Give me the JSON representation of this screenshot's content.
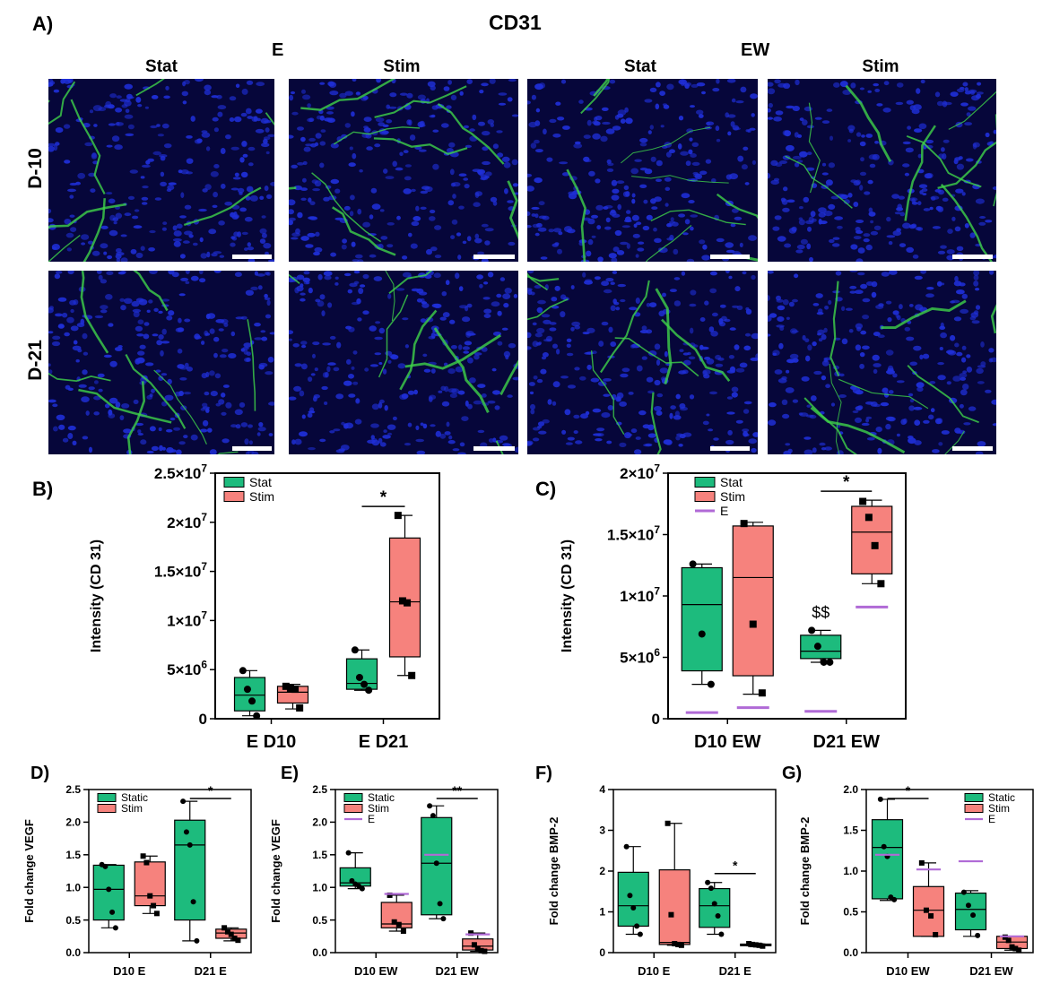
{
  "panel_a": {
    "letter": "A)",
    "title": "CD31",
    "group_labels": [
      "E",
      "EW"
    ],
    "column_labels": [
      "Stat",
      "Stim",
      "Stat",
      "Stim"
    ],
    "row_labels": [
      "D-10",
      "D-21"
    ],
    "colors": {
      "nuclei": "#1f2fd8",
      "cd31": "#3fd24a",
      "background": "#06063a"
    }
  },
  "chart_data": [
    {
      "id": "B",
      "letter": "B)",
      "type": "box",
      "ylabel": "Intensity (CD 31)",
      "yscale_label_style": "scientific",
      "ylim": [
        0,
        25000000
      ],
      "yticks": [
        0,
        5000000,
        10000000,
        15000000,
        20000000,
        25000000
      ],
      "ytick_labels": [
        "0",
        "5×10^6",
        "1×10^7",
        "1.5×10^7",
        "2×10^7",
        "2.5×10^7"
      ],
      "categories": [
        "E D10",
        "E D21"
      ],
      "legend": [
        {
          "name": "Stat",
          "color": "#1dbb7d"
        },
        {
          "name": "Stim",
          "color": "#f6827d"
        }
      ],
      "series": [
        {
          "name": "Stat",
          "color": "#1dbb7d",
          "marker": "circle",
          "boxes": [
            {
              "min": 300000,
              "q1": 800000,
              "median": 2400000,
              "q3": 4200000,
              "max": 4900000,
              "points": [
                4900000,
                3000000,
                1800000,
                300000
              ]
            },
            {
              "min": 2900000,
              "q1": 3000000,
              "median": 3600000,
              "q3": 6100000,
              "max": 7000000,
              "points": [
                7000000,
                4200000,
                3500000,
                2900000
              ]
            }
          ]
        },
        {
          "name": "Stim",
          "color": "#f6827d",
          "marker": "square",
          "boxes": [
            {
              "min": 1000000,
              "q1": 1600000,
              "median": 2700000,
              "q3": 3300000,
              "max": 3500000,
              "points": [
                3300000,
                3100000,
                3000000,
                1100000
              ]
            },
            {
              "min": 4400000,
              "q1": 6300000,
              "median": 11900000,
              "q3": 18400000,
              "max": 20700000,
              "points": [
                20700000,
                12000000,
                11800000,
                4400000
              ]
            }
          ]
        }
      ],
      "significance": [
        {
          "category": 1,
          "label": "*"
        }
      ],
      "reference_lines": []
    },
    {
      "id": "C",
      "letter": "C)",
      "type": "box",
      "ylabel": "Intensity (CD 31)",
      "ylim": [
        0,
        20000000
      ],
      "yticks": [
        0,
        5000000,
        10000000,
        15000000,
        20000000
      ],
      "ytick_labels": [
        "0",
        "5×10^6",
        "1×10^7",
        "1.5×10^7",
        "2×10^7"
      ],
      "categories": [
        "D10 EW",
        "D21 EW"
      ],
      "legend": [
        {
          "name": "Stat",
          "color": "#1dbb7d"
        },
        {
          "name": "Stim",
          "color": "#f6827d"
        },
        {
          "name": "E",
          "color": "#b06ad6"
        }
      ],
      "series": [
        {
          "name": "Stat",
          "color": "#1dbb7d",
          "marker": "circle",
          "boxes": [
            {
              "min": 2800000,
              "q1": 3900000,
              "median": 9300000,
              "q3": 12300000,
              "max": 12600000,
              "points": [
                12600000,
                6900000,
                2800000
              ]
            },
            {
              "min": 4600000,
              "q1": 4900000,
              "median": 5500000,
              "q3": 6800000,
              "max": 7200000,
              "points": [
                7200000,
                5900000,
                4600000,
                4600000
              ]
            }
          ]
        },
        {
          "name": "Stim",
          "color": "#f6827d",
          "marker": "square",
          "boxes": [
            {
              "min": 2000000,
              "q1": 3500000,
              "median": 11500000,
              "q3": 15700000,
              "max": 16000000,
              "points": [
                15900000,
                7700000,
                2100000
              ]
            },
            {
              "min": 11000000,
              "q1": 11800000,
              "median": 15200000,
              "q3": 17300000,
              "max": 17800000,
              "points": [
                17700000,
                16400000,
                14100000,
                11000000
              ]
            }
          ]
        }
      ],
      "reference_lines": [
        {
          "category": 0,
          "offset": "Stat",
          "value": 500000
        },
        {
          "category": 0,
          "offset": "Stim",
          "value": 900000
        },
        {
          "category": 1,
          "offset": "Stat",
          "value": 600000
        },
        {
          "category": 1,
          "offset": "Stim",
          "value": 9100000
        }
      ],
      "significance": [
        {
          "category": 1,
          "label": "*"
        }
      ],
      "annotations": [
        {
          "category": 1,
          "series": "Stat",
          "text": "$$"
        }
      ]
    },
    {
      "id": "D",
      "letter": "D)",
      "type": "box",
      "ylabel": "Fold change VEGF",
      "ylim": [
        0,
        2.5
      ],
      "yticks": [
        0,
        0.5,
        1,
        1.5,
        2,
        2.5
      ],
      "ytick_labels": [
        "0.0",
        "0.5",
        "1.0",
        "1.5",
        "2.0",
        "2.5"
      ],
      "categories": [
        "D10 E",
        "D21 E"
      ],
      "legend": [
        {
          "name": "Static",
          "color": "#1dbb7d"
        },
        {
          "name": "Stim",
          "color": "#f6827d"
        }
      ],
      "series": [
        {
          "name": "Static",
          "color": "#1dbb7d",
          "marker": "circle",
          "boxes": [
            {
              "min": 0.38,
              "q1": 0.5,
              "median": 0.97,
              "q3": 1.34,
              "max": 1.35,
              "points": [
                1.35,
                1.32,
                0.97,
                0.62,
                0.38
              ]
            },
            {
              "min": 0.18,
              "q1": 0.5,
              "median": 1.65,
              "q3": 2.03,
              "max": 2.32,
              "points": [
                2.32,
                1.85,
                1.65,
                0.78,
                0.18
              ]
            }
          ]
        },
        {
          "name": "Stim",
          "color": "#f6827d",
          "marker": "square",
          "boxes": [
            {
              "min": 0.6,
              "q1": 0.72,
              "median": 0.87,
              "q3": 1.39,
              "max": 1.48,
              "points": [
                1.48,
                1.38,
                0.87,
                0.72,
                0.6
              ]
            },
            {
              "min": 0.18,
              "q1": 0.22,
              "median": 0.3,
              "q3": 0.36,
              "max": 0.38,
              "points": [
                0.38,
                0.32,
                0.28,
                0.22,
                0.19
              ]
            }
          ]
        }
      ],
      "significance": [
        {
          "category": 1,
          "label": "*"
        }
      ],
      "reference_lines": []
    },
    {
      "id": "E",
      "letter": "E)",
      "type": "box",
      "ylabel": "Fold change VEGF",
      "ylim": [
        0,
        2.5
      ],
      "yticks": [
        0,
        0.5,
        1,
        1.5,
        2,
        2.5
      ],
      "ytick_labels": [
        "0.0",
        "0.5",
        "1.0",
        "1.5",
        "2.0",
        "2.5"
      ],
      "categories": [
        "D10 EW",
        "D21 EW"
      ],
      "legend": [
        {
          "name": "Static",
          "color": "#1dbb7d"
        },
        {
          "name": "Stim",
          "color": "#f6827d"
        },
        {
          "name": "E",
          "color": "#b06ad6"
        }
      ],
      "series": [
        {
          "name": "Static",
          "color": "#1dbb7d",
          "marker": "circle",
          "boxes": [
            {
              "min": 0.98,
              "q1": 1.02,
              "median": 1.07,
              "q3": 1.3,
              "max": 1.53,
              "points": [
                1.53,
                1.1,
                1.05,
                1.02,
                0.98
              ]
            },
            {
              "min": 0.52,
              "q1": 0.58,
              "median": 1.37,
              "q3": 2.07,
              "max": 2.25,
              "points": [
                2.25,
                2.1,
                1.37,
                0.75,
                0.52
              ]
            }
          ]
        },
        {
          "name": "Stim",
          "color": "#f6827d",
          "marker": "square",
          "boxes": [
            {
              "min": 0.33,
              "q1": 0.38,
              "median": 0.44,
              "q3": 0.77,
              "max": 0.88,
              "points": [
                0.88,
                0.47,
                0.43,
                0.33
              ]
            },
            {
              "min": 0.02,
              "q1": 0.04,
              "median": 0.1,
              "q3": 0.21,
              "max": 0.3,
              "points": [
                0.3,
                0.12,
                0.06,
                0.03,
                0.02
              ]
            }
          ]
        }
      ],
      "reference_lines": [
        {
          "category": 0,
          "offset": "Stim",
          "value": 0.9
        },
        {
          "category": 1,
          "offset": "Static",
          "value": 1.5
        },
        {
          "category": 1,
          "offset": "Stim",
          "value": 0.28
        }
      ],
      "significance": [
        {
          "category": 1,
          "label": "**"
        }
      ]
    },
    {
      "id": "F",
      "letter": "F)",
      "type": "box",
      "ylabel": "Fold change BMP-2",
      "ylim": [
        0,
        4
      ],
      "yticks": [
        0,
        1,
        2,
        3,
        4
      ],
      "ytick_labels": [
        "0",
        "1",
        "2",
        "3",
        "4"
      ],
      "categories": [
        "D10 E",
        "D21 E"
      ],
      "legend": [],
      "series": [
        {
          "name": "Static",
          "color": "#1dbb7d",
          "marker": "circle",
          "boxes": [
            {
              "min": 0.45,
              "q1": 0.65,
              "median": 1.15,
              "q3": 1.97,
              "max": 2.6,
              "points": [
                2.6,
                1.4,
                1.1,
                0.65,
                0.45
              ]
            },
            {
              "min": 0.45,
              "q1": 0.62,
              "median": 1.15,
              "q3": 1.57,
              "max": 1.72,
              "points": [
                1.72,
                1.58,
                1.2,
                0.9,
                0.45
              ]
            }
          ]
        },
        {
          "name": "Stim",
          "color": "#f6827d",
          "marker": "square",
          "boxes": [
            {
              "min": 0.18,
              "q1": 0.2,
              "median": 0.25,
              "q3": 2.03,
              "max": 3.17,
              "points": [
                3.17,
                0.93,
                0.22,
                0.2,
                0.18
              ]
            },
            {
              "min": 0.15,
              "q1": 0.17,
              "median": 0.19,
              "q3": 0.21,
              "max": 0.22,
              "points": [
                0.22,
                0.2,
                0.19,
                0.18,
                0.16
              ]
            }
          ]
        }
      ],
      "significance": [
        {
          "category": 1,
          "label": "*"
        }
      ],
      "reference_lines": []
    },
    {
      "id": "G",
      "letter": "G)",
      "type": "box",
      "ylabel": "Fold change BMP-2",
      "ylim": [
        0,
        2
      ],
      "yticks": [
        0,
        0.5,
        1,
        1.5,
        2
      ],
      "ytick_labels": [
        "0.0",
        "0.5",
        "1.0",
        "1.5",
        "2.0"
      ],
      "categories": [
        "D10 EW",
        "D21 EW"
      ],
      "legend": [
        {
          "name": "Static",
          "color": "#1dbb7d"
        },
        {
          "name": "Stim",
          "color": "#f6827d"
        },
        {
          "name": "E",
          "color": "#b06ad6"
        }
      ],
      "series": [
        {
          "name": "Static",
          "color": "#1dbb7d",
          "marker": "circle",
          "boxes": [
            {
              "min": 0.64,
              "q1": 0.66,
              "median": 1.29,
              "q3": 1.63,
              "max": 1.88,
              "points": [
                1.88,
                1.3,
                1.18,
                0.68,
                0.65
              ]
            },
            {
              "min": 0.2,
              "q1": 0.28,
              "median": 0.53,
              "q3": 0.73,
              "max": 0.76,
              "points": [
                0.74,
                0.58,
                0.46,
                0.21
              ]
            }
          ]
        },
        {
          "name": "Stim",
          "color": "#f6827d",
          "marker": "square",
          "boxes": [
            {
              "min": 0.2,
              "q1": 0.2,
              "median": 0.52,
              "q3": 0.81,
              "max": 1.1,
              "points": [
                1.1,
                0.52,
                0.45,
                0.22
              ]
            },
            {
              "min": 0.03,
              "q1": 0.05,
              "median": 0.13,
              "q3": 0.2,
              "max": 0.2,
              "points": [
                0.19,
                0.15,
                0.07,
                0.05,
                0.03
              ]
            }
          ]
        }
      ],
      "reference_lines": [
        {
          "category": 0,
          "offset": "Static",
          "value": 1.2
        },
        {
          "category": 0,
          "offset": "Stim",
          "value": 1.02
        },
        {
          "category": 1,
          "offset": "Static",
          "value": 1.12
        },
        {
          "category": 1,
          "offset": "Stim",
          "value": 0.2
        }
      ],
      "significance": [
        {
          "category": 0,
          "label": "*"
        }
      ]
    }
  ]
}
